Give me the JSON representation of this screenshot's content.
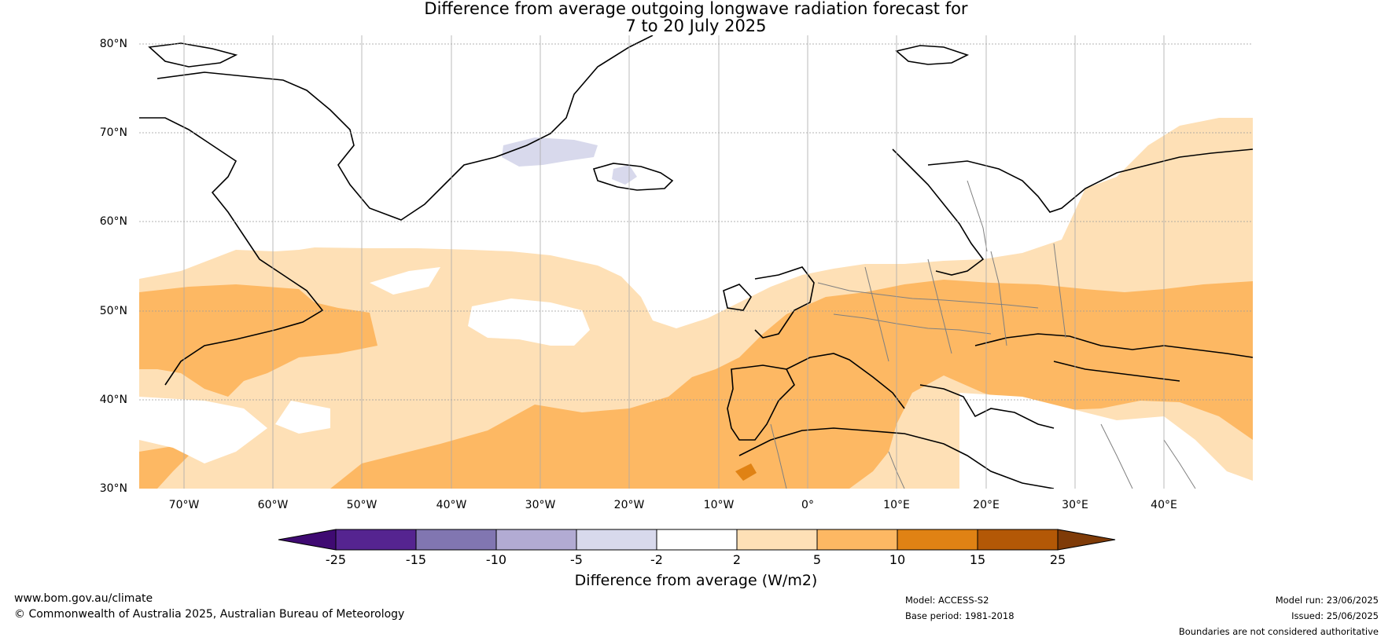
{
  "title_line1": "Difference from average outgoing longwave radiation forecast for",
  "title_line2": "7 to 20 July 2025",
  "map": {
    "lat_labels": [
      "80°N",
      "70°N",
      "60°N",
      "50°N",
      "40°N",
      "30°N"
    ],
    "lon_labels": [
      "70°W",
      "60°W",
      "50°W",
      "40°W",
      "30°W",
      "20°W",
      "10°W",
      "0°",
      "10°E",
      "20°E",
      "30°E",
      "40°E"
    ],
    "extent": {
      "lon_min": -75,
      "lon_max": 50,
      "lat_min": 30,
      "lat_max": 81
    },
    "gridlines": true
  },
  "colorbar": {
    "ticks": [
      "-25",
      "-15",
      "-10",
      "-5",
      "-2",
      "2",
      "5",
      "10",
      "15",
      "25"
    ],
    "colors": [
      "#3f0a72",
      "#552490",
      "#8176b1",
      "#b2abd3",
      "#d8d9ec",
      "#ffffff",
      "#fee0b6",
      "#fdb863",
      "#e08214",
      "#b35806",
      "#7f3b08"
    ],
    "label": "Difference from average (W/m2)"
  },
  "footer": {
    "website": "www.bom.gov.au/climate",
    "copyright": "© Commonwealth of Australia 2025, Australian Bureau of Meteorology",
    "model": "Model: ACCESS-S2",
    "base_period": "Base period: 1981-2018",
    "model_run": "Model run: 23/06/2025",
    "issued": "Issued: 25/06/2025",
    "disclaimer": "Boundaries are not considered authoritative"
  },
  "colors": {
    "light_orange": "#fee0b6",
    "mid_orange": "#fdb863",
    "dark_orange": "#e08214",
    "light_purple": "#d8d9ec"
  }
}
